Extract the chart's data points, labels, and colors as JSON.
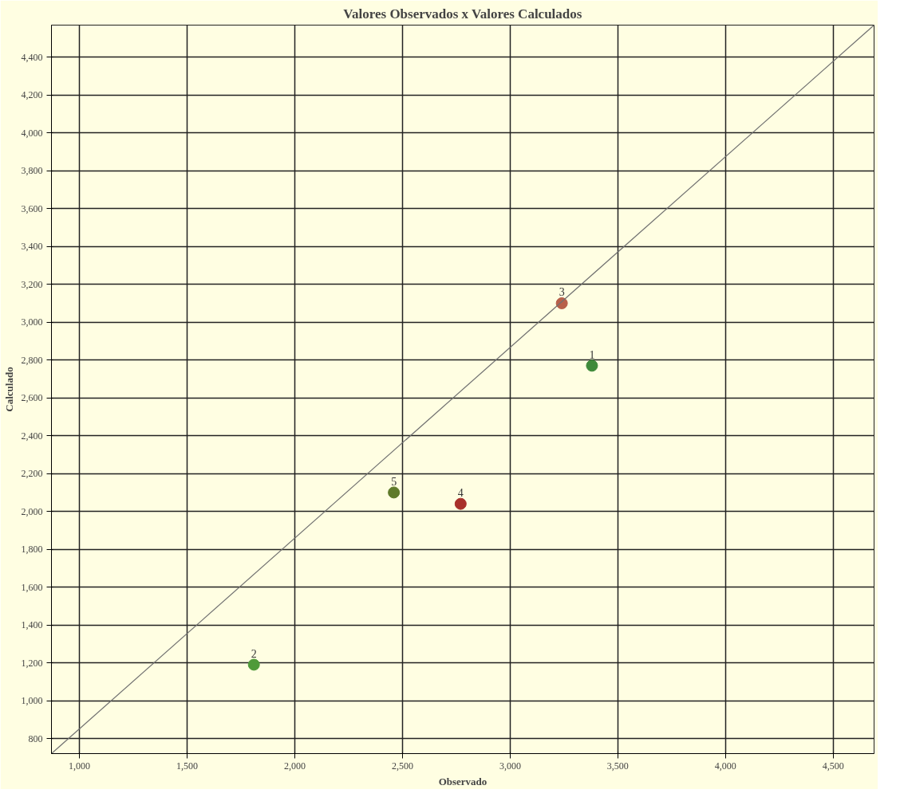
{
  "chart_data": {
    "type": "scatter",
    "title": "Valores Observados x Valores Calculados",
    "xlabel": "Observado",
    "ylabel": "Calculado",
    "xlim": [
      870,
      4690
    ],
    "ylim": [
      720,
      4570
    ],
    "xticks": [
      {
        "value": 1000,
        "label": "1,000"
      },
      {
        "value": 1500,
        "label": "1,500"
      },
      {
        "value": 2000,
        "label": "2,000"
      },
      {
        "value": 2500,
        "label": "2,500"
      },
      {
        "value": 3000,
        "label": "3,000"
      },
      {
        "value": 3500,
        "label": "3,500"
      },
      {
        "value": 4000,
        "label": "4,000"
      },
      {
        "value": 4500,
        "label": "4,500"
      }
    ],
    "yticks": [
      800,
      {
        "value": 1000,
        "label": "1,000"
      },
      {
        "value": 1200,
        "label": "1,200"
      },
      {
        "value": 1400,
        "label": "1,400"
      },
      {
        "value": 1600,
        "label": "1,600"
      },
      {
        "value": 1800,
        "label": "1,800"
      },
      {
        "value": 2000,
        "label": "2,000"
      },
      {
        "value": 2200,
        "label": "2,200"
      },
      {
        "value": 2400,
        "label": "2,400"
      },
      {
        "value": 2600,
        "label": "2,600"
      },
      {
        "value": 2800,
        "label": "2,800"
      },
      {
        "value": 3000,
        "label": "3,000"
      },
      {
        "value": 3200,
        "label": "3,200"
      },
      {
        "value": 3400,
        "label": "3,400"
      },
      {
        "value": 3600,
        "label": "3,600"
      },
      {
        "value": 3800,
        "label": "3,800"
      },
      {
        "value": 4000,
        "label": "4,000"
      },
      {
        "value": 4200,
        "label": "4,200"
      },
      {
        "value": 4400,
        "label": "4,400"
      }
    ],
    "grid": true,
    "annotations": [
      {
        "text": "1",
        "x": 3380,
        "y": 2770
      },
      {
        "text": "2",
        "x": 1810,
        "y": 1190
      },
      {
        "text": "3",
        "x": 3240,
        "y": 3100
      },
      {
        "text": "4",
        "x": 2770,
        "y": 2040
      },
      {
        "text": "5",
        "x": 2460,
        "y": 2100
      }
    ],
    "series": [
      {
        "x": [
          3380,
          1810,
          3240,
          2770,
          2460
        ],
        "values": [
          2770,
          1190,
          3100,
          2040,
          2100
        ],
        "colors": [
          "#3f8a3a",
          "#4f9a3a",
          "#b8604a",
          "#a8302a",
          "#5f7a2a"
        ],
        "marker": "circle"
      },
      {
        "type": "line",
        "x": [
          870,
          4690
        ],
        "values": [
          720,
          4570
        ],
        "color": "#707070",
        "marker": "none"
      }
    ]
  }
}
